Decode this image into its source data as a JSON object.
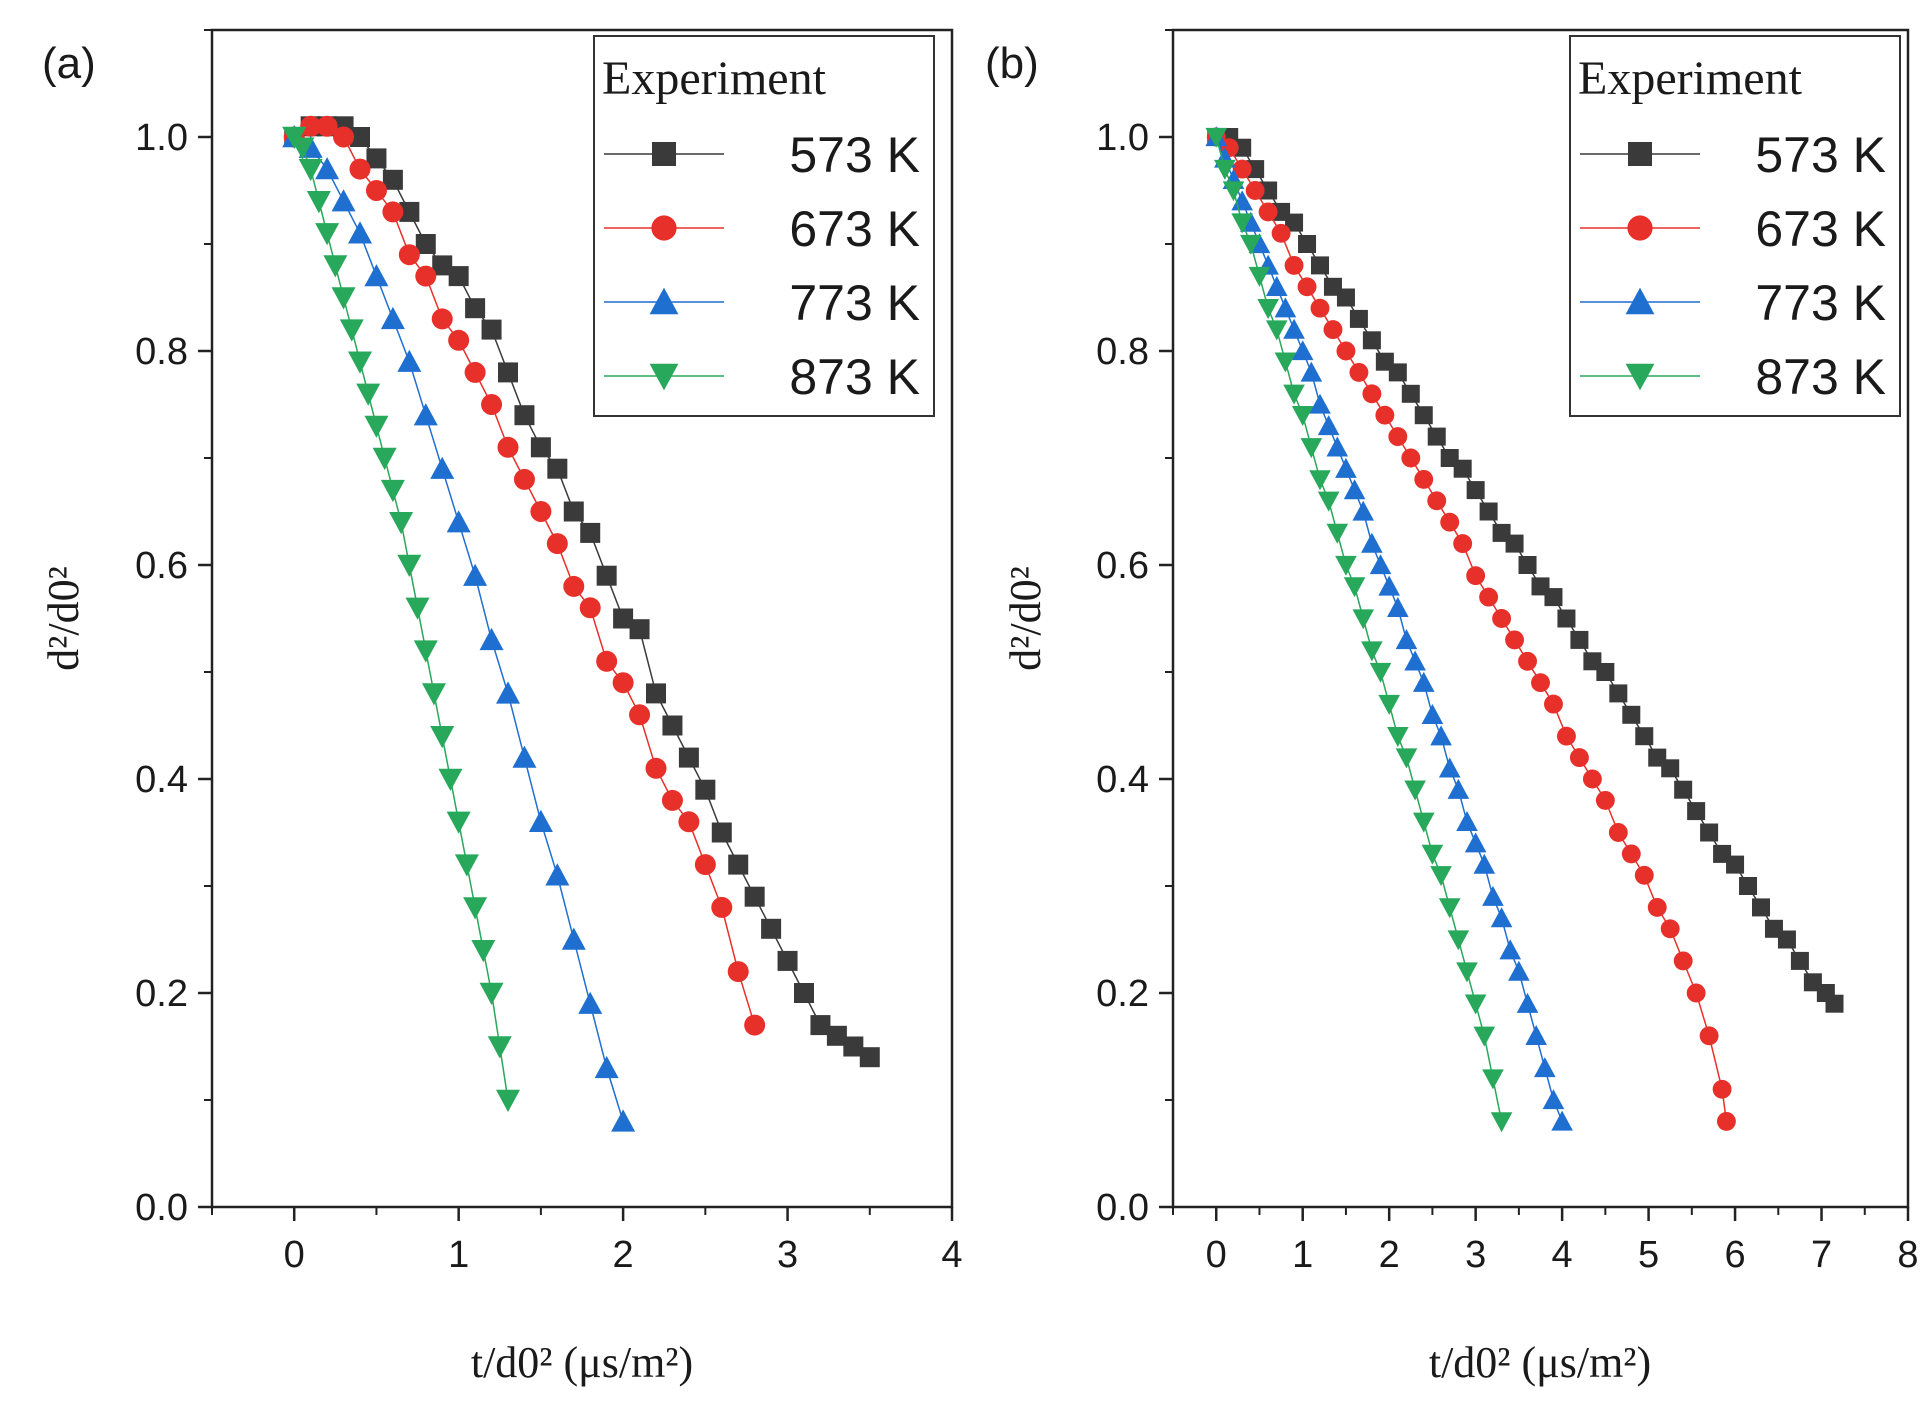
{
  "chart_data": [
    {
      "panel": "(a)",
      "type": "scatter",
      "xlabel": "t/d0² (μs/m²)",
      "ylabel": "d²/d0²",
      "xlim": [
        -0.5,
        4
      ],
      "ylim": [
        0,
        1.1
      ],
      "xticks": [
        0,
        1,
        2,
        3,
        4
      ],
      "yticks": [
        0.0,
        0.2,
        0.4,
        0.6,
        0.8,
        1.0
      ],
      "legend_title": "Experiment",
      "legend_position": "top-right",
      "series": [
        {
          "name": "573 K",
          "color": "#3a3a3a",
          "marker": "square",
          "x": [
            0,
            0.1,
            0.2,
            0.3,
            0.4,
            0.5,
            0.6,
            0.7,
            0.8,
            0.9,
            1.0,
            1.1,
            1.2,
            1.3,
            1.4,
            1.5,
            1.6,
            1.7,
            1.8,
            1.9,
            2.0,
            2.1,
            2.2,
            2.3,
            2.4,
            2.5,
            2.6,
            2.7,
            2.8,
            2.9,
            3.0,
            3.1,
            3.2,
            3.3,
            3.4,
            3.5
          ],
          "y": [
            1.0,
            1.01,
            1.01,
            1.01,
            1.0,
            0.98,
            0.96,
            0.93,
            0.9,
            0.88,
            0.87,
            0.84,
            0.82,
            0.78,
            0.74,
            0.71,
            0.69,
            0.65,
            0.63,
            0.59,
            0.55,
            0.54,
            0.48,
            0.45,
            0.42,
            0.39,
            0.35,
            0.32,
            0.29,
            0.26,
            0.23,
            0.2,
            0.17,
            0.16,
            0.15,
            0.14
          ]
        },
        {
          "name": "673 K",
          "color": "#e8302b",
          "marker": "circle",
          "x": [
            0,
            0.1,
            0.2,
            0.3,
            0.4,
            0.5,
            0.6,
            0.7,
            0.8,
            0.9,
            1.0,
            1.1,
            1.2,
            1.3,
            1.4,
            1.5,
            1.6,
            1.7,
            1.8,
            1.9,
            2.0,
            2.1,
            2.2,
            2.3,
            2.4,
            2.5,
            2.6,
            2.7,
            2.8
          ],
          "y": [
            1.0,
            1.01,
            1.01,
            1.0,
            0.97,
            0.95,
            0.93,
            0.89,
            0.87,
            0.83,
            0.81,
            0.78,
            0.75,
            0.71,
            0.68,
            0.65,
            0.62,
            0.58,
            0.56,
            0.51,
            0.49,
            0.46,
            0.41,
            0.38,
            0.36,
            0.32,
            0.28,
            0.22,
            0.17
          ]
        },
        {
          "name": "773 K",
          "color": "#1f6fd1",
          "marker": "triangle-up",
          "x": [
            0,
            0.1,
            0.2,
            0.3,
            0.4,
            0.5,
            0.6,
            0.7,
            0.8,
            0.9,
            1.0,
            1.1,
            1.2,
            1.3,
            1.4,
            1.5,
            1.6,
            1.7,
            1.8,
            1.9,
            2.0
          ],
          "y": [
            1.0,
            0.99,
            0.97,
            0.94,
            0.91,
            0.87,
            0.83,
            0.79,
            0.74,
            0.69,
            0.64,
            0.59,
            0.53,
            0.48,
            0.42,
            0.36,
            0.31,
            0.25,
            0.19,
            0.13,
            0.08
          ]
        },
        {
          "name": "873 K",
          "color": "#27a85a",
          "marker": "triangle-down",
          "x": [
            0,
            0.05,
            0.1,
            0.15,
            0.2,
            0.25,
            0.3,
            0.35,
            0.4,
            0.45,
            0.5,
            0.55,
            0.6,
            0.65,
            0.7,
            0.75,
            0.8,
            0.85,
            0.9,
            0.95,
            1.0,
            1.05,
            1.1,
            1.15,
            1.2,
            1.25,
            1.3
          ],
          "y": [
            1.0,
            0.99,
            0.97,
            0.94,
            0.91,
            0.88,
            0.85,
            0.82,
            0.79,
            0.76,
            0.73,
            0.7,
            0.67,
            0.64,
            0.6,
            0.56,
            0.52,
            0.48,
            0.44,
            0.4,
            0.36,
            0.32,
            0.28,
            0.24,
            0.2,
            0.15,
            0.1
          ]
        }
      ]
    },
    {
      "panel": "(b)",
      "type": "scatter",
      "xlabel": "t/d0² (μs/m²)",
      "ylabel": "d²/d0²",
      "xlim": [
        -0.5,
        8
      ],
      "ylim": [
        0,
        1.1
      ],
      "xticks": [
        0,
        1,
        2,
        3,
        4,
        5,
        6,
        7,
        8
      ],
      "yticks": [
        0.0,
        0.2,
        0.4,
        0.6,
        0.8,
        1.0
      ],
      "legend_title": "Experiment",
      "legend_position": "top-right",
      "series": [
        {
          "name": "573 K",
          "color": "#3a3a3a",
          "marker": "square",
          "x": [
            0,
            0.15,
            0.3,
            0.45,
            0.6,
            0.75,
            0.9,
            1.05,
            1.2,
            1.35,
            1.5,
            1.65,
            1.8,
            1.95,
            2.1,
            2.25,
            2.4,
            2.55,
            2.7,
            2.85,
            3.0,
            3.15,
            3.3,
            3.45,
            3.6,
            3.75,
            3.9,
            4.05,
            4.2,
            4.35,
            4.5,
            4.65,
            4.8,
            4.95,
            5.1,
            5.25,
            5.4,
            5.55,
            5.7,
            5.85,
            6.0,
            6.15,
            6.3,
            6.45,
            6.6,
            6.75,
            6.9,
            7.05,
            7.15
          ],
          "y": [
            1.0,
            1.0,
            0.99,
            0.97,
            0.95,
            0.93,
            0.92,
            0.9,
            0.88,
            0.86,
            0.85,
            0.83,
            0.81,
            0.79,
            0.78,
            0.76,
            0.74,
            0.72,
            0.7,
            0.69,
            0.67,
            0.65,
            0.63,
            0.62,
            0.6,
            0.58,
            0.57,
            0.55,
            0.53,
            0.51,
            0.5,
            0.48,
            0.46,
            0.44,
            0.42,
            0.41,
            0.39,
            0.37,
            0.35,
            0.33,
            0.32,
            0.3,
            0.28,
            0.26,
            0.25,
            0.23,
            0.21,
            0.2,
            0.19
          ]
        },
        {
          "name": "673 K",
          "color": "#e8302b",
          "marker": "circle",
          "x": [
            0,
            0.15,
            0.3,
            0.45,
            0.6,
            0.75,
            0.9,
            1.05,
            1.2,
            1.35,
            1.5,
            1.65,
            1.8,
            1.95,
            2.1,
            2.25,
            2.4,
            2.55,
            2.7,
            2.85,
            3.0,
            3.15,
            3.3,
            3.45,
            3.6,
            3.75,
            3.9,
            4.05,
            4.2,
            4.35,
            4.5,
            4.65,
            4.8,
            4.95,
            5.1,
            5.25,
            5.4,
            5.55,
            5.7,
            5.85,
            5.9
          ],
          "y": [
            1.0,
            0.99,
            0.97,
            0.95,
            0.93,
            0.91,
            0.88,
            0.86,
            0.84,
            0.82,
            0.8,
            0.78,
            0.76,
            0.74,
            0.72,
            0.7,
            0.68,
            0.66,
            0.64,
            0.62,
            0.59,
            0.57,
            0.55,
            0.53,
            0.51,
            0.49,
            0.47,
            0.44,
            0.42,
            0.4,
            0.38,
            0.35,
            0.33,
            0.31,
            0.28,
            0.26,
            0.23,
            0.2,
            0.16,
            0.11,
            0.08
          ]
        },
        {
          "name": "773 K",
          "color": "#1f6fd1",
          "marker": "triangle-up",
          "x": [
            0,
            0.1,
            0.2,
            0.3,
            0.4,
            0.5,
            0.6,
            0.7,
            0.8,
            0.9,
            1.0,
            1.1,
            1.2,
            1.3,
            1.4,
            1.5,
            1.6,
            1.7,
            1.8,
            1.9,
            2.0,
            2.1,
            2.2,
            2.3,
            2.4,
            2.5,
            2.6,
            2.7,
            2.8,
            2.9,
            3.0,
            3.1,
            3.2,
            3.3,
            3.4,
            3.5,
            3.6,
            3.7,
            3.8,
            3.9,
            4.0
          ],
          "y": [
            1.0,
            0.98,
            0.96,
            0.94,
            0.92,
            0.9,
            0.88,
            0.86,
            0.84,
            0.82,
            0.8,
            0.78,
            0.75,
            0.73,
            0.71,
            0.69,
            0.67,
            0.65,
            0.62,
            0.6,
            0.58,
            0.56,
            0.53,
            0.51,
            0.49,
            0.46,
            0.44,
            0.41,
            0.39,
            0.36,
            0.34,
            0.32,
            0.29,
            0.27,
            0.24,
            0.22,
            0.19,
            0.16,
            0.13,
            0.1,
            0.08
          ]
        },
        {
          "name": "873 K",
          "color": "#27a85a",
          "marker": "triangle-down",
          "x": [
            0,
            0.1,
            0.2,
            0.3,
            0.4,
            0.5,
            0.6,
            0.7,
            0.8,
            0.9,
            1.0,
            1.1,
            1.2,
            1.3,
            1.4,
            1.5,
            1.6,
            1.7,
            1.8,
            1.9,
            2.0,
            2.1,
            2.2,
            2.3,
            2.4,
            2.5,
            2.6,
            2.7,
            2.8,
            2.9,
            3.0,
            3.1,
            3.2,
            3.3
          ],
          "y": [
            1.0,
            0.97,
            0.95,
            0.92,
            0.9,
            0.87,
            0.84,
            0.82,
            0.79,
            0.76,
            0.74,
            0.71,
            0.68,
            0.66,
            0.63,
            0.6,
            0.58,
            0.55,
            0.52,
            0.5,
            0.47,
            0.44,
            0.42,
            0.39,
            0.36,
            0.33,
            0.31,
            0.28,
            0.25,
            0.22,
            0.19,
            0.16,
            0.12,
            0.08
          ]
        }
      ]
    }
  ]
}
